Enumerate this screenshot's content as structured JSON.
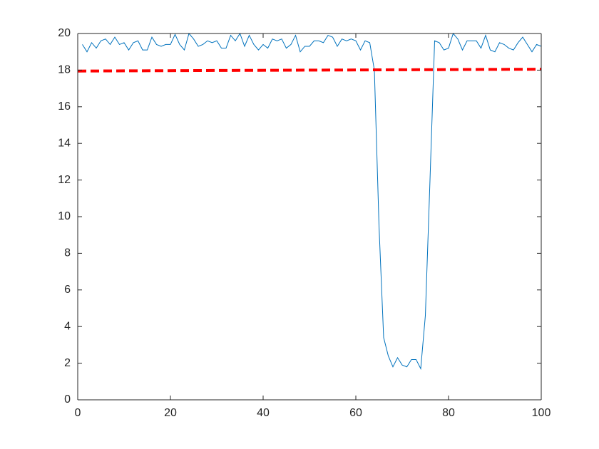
{
  "chart_data": {
    "type": "line",
    "series": [
      {
        "color": "#0072bd",
        "line_style": "solid",
        "line_width": 1,
        "x": [
          1,
          2,
          3,
          4,
          5,
          6,
          7,
          8,
          9,
          10,
          11,
          12,
          13,
          14,
          15,
          16,
          17,
          18,
          19,
          20,
          21,
          22,
          23,
          24,
          25,
          26,
          27,
          28,
          29,
          30,
          31,
          32,
          33,
          34,
          35,
          36,
          37,
          38,
          39,
          40,
          41,
          42,
          43,
          44,
          45,
          46,
          47,
          48,
          49,
          50,
          51,
          52,
          53,
          54,
          55,
          56,
          57,
          58,
          59,
          60,
          61,
          62,
          63,
          64,
          65,
          66,
          67,
          68,
          69,
          70,
          71,
          72,
          73,
          74,
          75,
          76,
          77,
          78,
          79,
          80,
          81,
          82,
          83,
          84,
          85,
          86,
          87,
          88,
          89,
          90,
          91,
          92,
          93,
          94,
          95,
          96,
          97,
          98,
          99,
          100
        ],
        "values": [
          19.4,
          19.0,
          19.5,
          19.2,
          19.6,
          19.7,
          19.4,
          19.8,
          19.4,
          19.5,
          19.1,
          19.5,
          19.6,
          19.1,
          19.1,
          19.8,
          19.4,
          19.3,
          19.4,
          19.4,
          19.95,
          19.4,
          19.1,
          20.0,
          19.7,
          19.3,
          19.4,
          19.6,
          19.5,
          19.6,
          19.2,
          19.2,
          19.9,
          19.6,
          20.0,
          19.3,
          19.9,
          19.4,
          19.1,
          19.4,
          19.2,
          19.7,
          19.6,
          19.7,
          19.2,
          19.4,
          19.9,
          19.0,
          19.3,
          19.3,
          19.6,
          19.6,
          19.5,
          19.9,
          19.8,
          19.3,
          19.7,
          19.6,
          19.7,
          19.6,
          19.1,
          19.6,
          19.5,
          18.0,
          9.5,
          3.4,
          2.4,
          1.8,
          2.3,
          1.9,
          1.8,
          2.2,
          2.2,
          1.7,
          4.6,
          12.0,
          19.6,
          19.5,
          19.1,
          19.2,
          20.0,
          19.7,
          19.1,
          19.6,
          19.6,
          19.6,
          19.2,
          19.9,
          19.1,
          19.0,
          19.5,
          19.4,
          19.2,
          19.1,
          19.5,
          19.8,
          19.4,
          19.0,
          19.4,
          19.3
        ]
      },
      {
        "color": "#ff0000",
        "line_style": "dashed",
        "line_width": 4,
        "x": [
          0,
          100
        ],
        "values": [
          17.95,
          18.05
        ]
      }
    ],
    "xlim": [
      0,
      100
    ],
    "xticks": [
      0,
      20,
      40,
      60,
      80,
      100
    ],
    "ylim": [
      0,
      20
    ],
    "yticks": [
      0,
      2,
      4,
      6,
      8,
      10,
      12,
      14,
      16,
      18,
      20
    ],
    "grid": false,
    "box": true
  }
}
